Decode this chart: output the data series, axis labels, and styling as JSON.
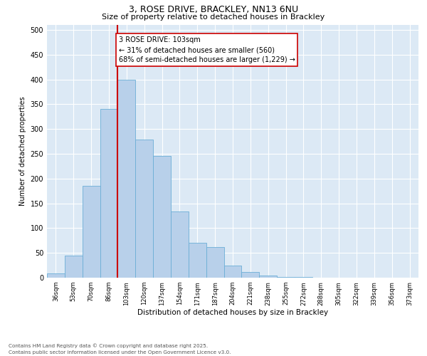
{
  "title1": "3, ROSE DRIVE, BRACKLEY, NN13 6NU",
  "title2": "Size of property relative to detached houses in Brackley",
  "xlabel": "Distribution of detached houses by size in Brackley",
  "ylabel": "Number of detached properties",
  "categories": [
    "36sqm",
    "53sqm",
    "70sqm",
    "86sqm",
    "103sqm",
    "120sqm",
    "137sqm",
    "154sqm",
    "171sqm",
    "187sqm",
    "204sqm",
    "221sqm",
    "238sqm",
    "255sqm",
    "272sqm",
    "288sqm",
    "305sqm",
    "322sqm",
    "339sqm",
    "356sqm",
    "373sqm"
  ],
  "values": [
    8,
    45,
    185,
    340,
    400,
    278,
    245,
    133,
    70,
    62,
    25,
    12,
    5,
    2,
    1,
    0,
    0,
    0,
    0,
    0,
    0
  ],
  "bar_color": "#b8d0ea",
  "bar_edge_color": "#6baed6",
  "highlight_bar_index": 4,
  "highlight_line_color": "#cc0000",
  "annotation_box_text": "3 ROSE DRIVE: 103sqm\n← 31% of detached houses are smaller (560)\n68% of semi-detached houses are larger (1,229) →",
  "annotation_box_color": "#cc0000",
  "annotation_text_fontsize": 7,
  "ylim": [
    0,
    510
  ],
  "yticks": [
    0,
    50,
    100,
    150,
    200,
    250,
    300,
    350,
    400,
    450,
    500
  ],
  "background_color": "#dce9f5",
  "footer1": "Contains HM Land Registry data © Crown copyright and database right 2025.",
  "footer2": "Contains public sector information licensed under the Open Government Licence v3.0.",
  "title1_fontsize": 9,
  "title2_fontsize": 8,
  "ylabel_fontsize": 7,
  "xlabel_fontsize": 7.5,
  "ytick_fontsize": 7,
  "xtick_fontsize": 6
}
